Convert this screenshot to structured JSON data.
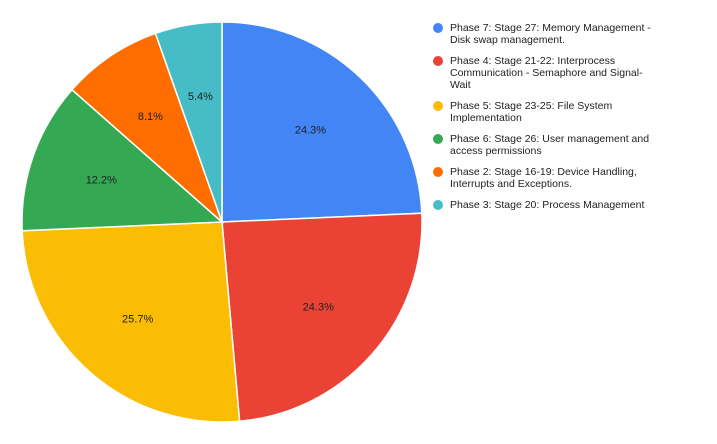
{
  "chart_data": {
    "type": "pie",
    "title": "",
    "legend_position": "right",
    "slices": [
      {
        "name": "Phase 7:  Stage 27: Memory Management -\nDisk swap management.",
        "value": 24.3,
        "label": "24.3%",
        "color": "#4285f4"
      },
      {
        "name": "Phase 4:  Stage 21-22: Interprocess\nCommunication - Semaphore and     Signal-\nWait",
        "value": 24.3,
        "label": "24.3%",
        "color": "#ea4335"
      },
      {
        "name": "Phase 5:  Stage 23-25: File System\nImplementation",
        "value": 25.7,
        "label": "25.7%",
        "color": "#fbbc04"
      },
      {
        "name": "Phase 6:  Stage 26:  User management and\naccess permissions",
        "value": 12.2,
        "label": "12.2%",
        "color": "#34a853"
      },
      {
        "name": "Phase 2:  Stage 16-19: Device Handling,\nInterrupts and Exceptions.",
        "value": 8.1,
        "label": "8.1%",
        "color": "#ff6d01"
      },
      {
        "name": "Phase 3:  Stage 20:  Process Management",
        "value": 5.4,
        "label": "5.4%",
        "color": "#46bdc6"
      }
    ]
  }
}
